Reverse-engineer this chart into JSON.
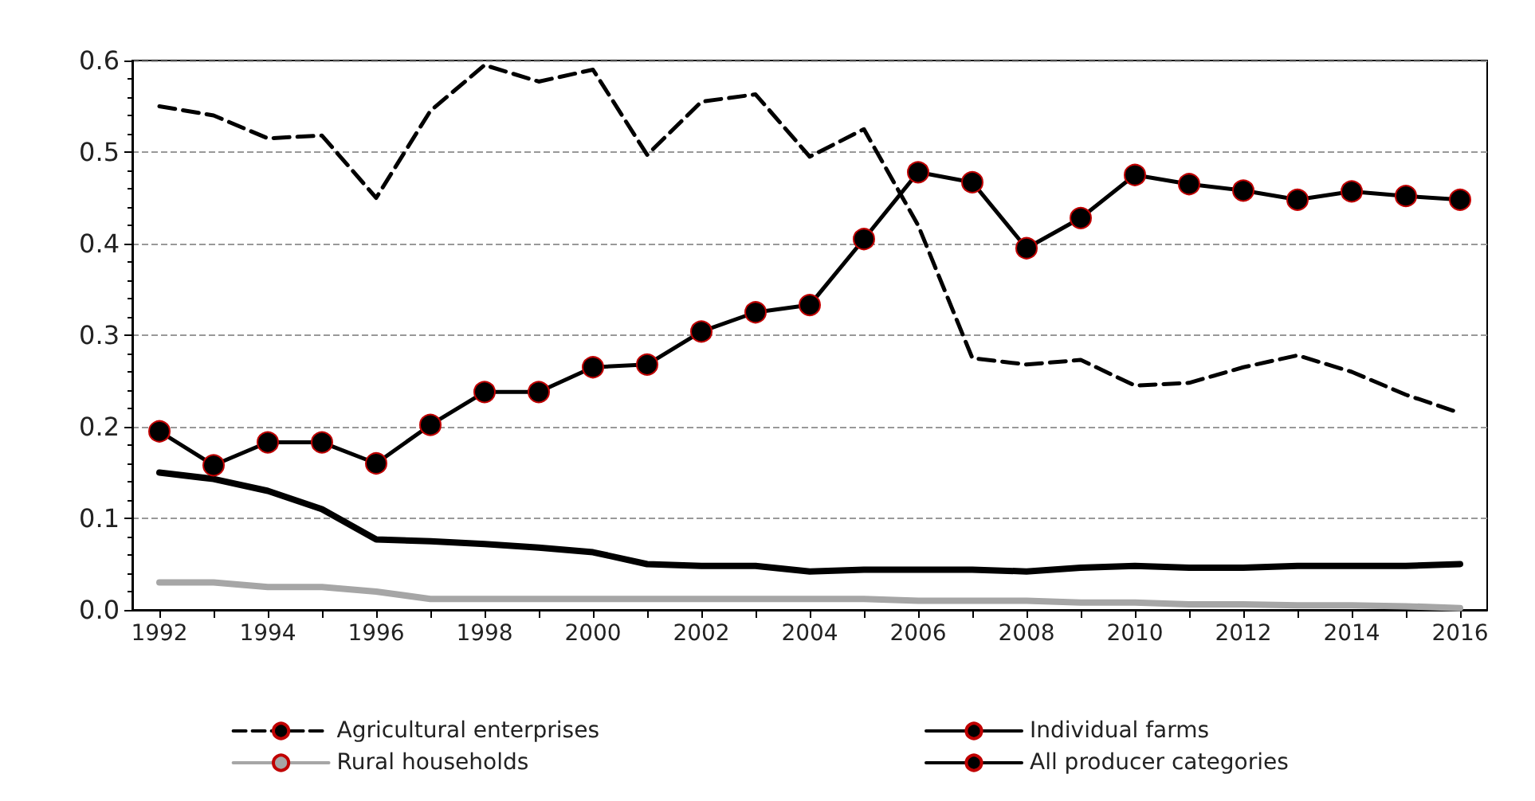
{
  "chart_data": {
    "type": "line",
    "categories": [
      "1992",
      null,
      "1994",
      null,
      "1996",
      null,
      "1998",
      null,
      "2000",
      null,
      "2002",
      null,
      "2004",
      null,
      "2006",
      null,
      "2008",
      null,
      "2010",
      null,
      "2012",
      null,
      "2014",
      null,
      "2016"
    ],
    "series": [
      {
        "name": "Agricultural enterprises",
        "color": "#000000",
        "line_style": "dashed",
        "marker": "none",
        "values": [
          0.55,
          0.54,
          0.515,
          0.518,
          0.45,
          0.545,
          0.595,
          0.577,
          0.59,
          0.497,
          0.555,
          0.563,
          0.495,
          0.525,
          0.42,
          0.275,
          0.268,
          0.273,
          0.245,
          0.248,
          0.265,
          0.278,
          0.26,
          0.235,
          0.215
        ]
      },
      {
        "name": "Individual farms",
        "color": "#000000",
        "line_style": "solid",
        "marker": "circle",
        "values": [
          0.195,
          0.158,
          0.183,
          0.183,
          0.16,
          0.202,
          0.238,
          0.238,
          0.265,
          0.268,
          0.304,
          0.325,
          0.333,
          0.405,
          0.478,
          0.467,
          0.395,
          0.428,
          0.475,
          0.465,
          0.458,
          0.448,
          0.457,
          0.452,
          0.448
        ]
      },
      {
        "name": "Rural households",
        "color": "#a6a6a6",
        "line_style": "solid",
        "marker": "none",
        "values": [
          0.03,
          0.03,
          0.025,
          0.025,
          0.02,
          0.012,
          0.012,
          0.012,
          0.012,
          0.012,
          0.012,
          0.012,
          0.012,
          0.012,
          0.01,
          0.01,
          0.01,
          0.008,
          0.008,
          0.006,
          0.006,
          0.005,
          0.005,
          0.004,
          0.002
        ]
      },
      {
        "name": "All producer categories",
        "color": "#000000",
        "line_style": "solid",
        "marker": "none",
        "values": [
          0.15,
          0.143,
          0.13,
          0.11,
          0.077,
          0.075,
          0.072,
          0.068,
          0.063,
          0.05,
          0.048,
          0.048,
          0.042,
          0.044,
          0.044,
          0.044,
          0.042,
          0.046,
          0.048,
          0.046,
          0.046,
          0.048,
          0.048,
          0.048,
          0.05
        ]
      }
    ],
    "ylim": [
      0,
      0.6
    ],
    "yticks": [
      {
        "value": 0,
        "label": "0.0"
      },
      0.1,
      0.2,
      0.3,
      0.4,
      0.5,
      0.6
    ],
    "grid": "y",
    "legend": "bottom"
  }
}
